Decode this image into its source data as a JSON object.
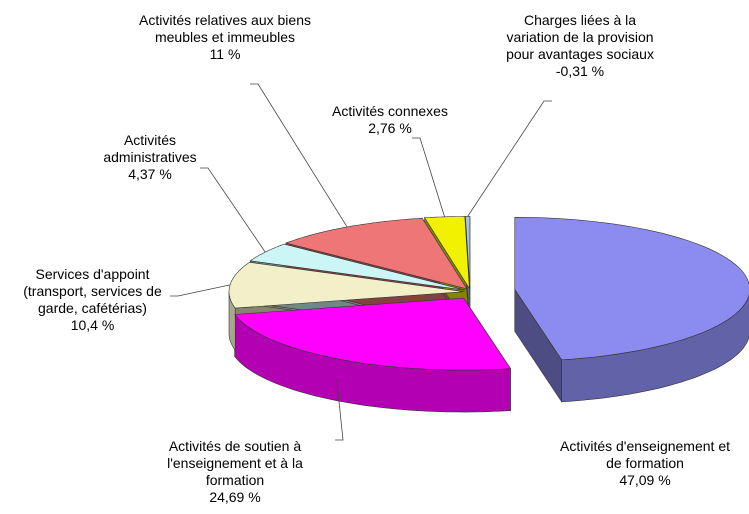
{
  "chart_data": {
    "type": "pie3d",
    "categories": [
      "Activités d'enseignement et de formation",
      "Activités de soutien à l'enseignement et à la formation",
      "Services d'appoint (transport, services de garde, cafétérias)",
      "Activités administratives",
      "Activités relatives aux biens meubles et immeubles",
      "Activités connexes",
      "Charges liées à la variation de la provision pour avantages sociaux"
    ],
    "values": [
      47.09,
      24.69,
      10.4,
      4.37,
      11,
      2.76,
      -0.31
    ],
    "value_labels": [
      "47,09 %",
      "24,69 %",
      "10,4 %",
      "4,37 %",
      "11 %",
      "2,76 %",
      "-0,31 %"
    ],
    "colors": [
      "#8c8cf0",
      "#ff00ff",
      "#f2f0c8",
      "#ccf6f6",
      "#ee7676",
      "#f2f200",
      "#a8c4e4"
    ]
  }
}
